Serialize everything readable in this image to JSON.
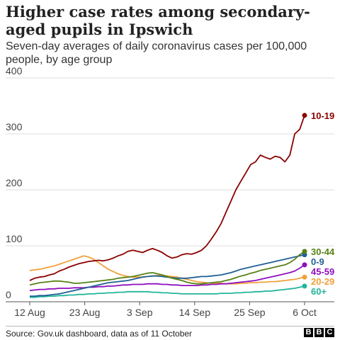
{
  "title": "Higher case rates among secondary-aged pupils in Ipswich",
  "subtitle": "Seven-day averages of daily coronavirus cases per 100,000 people, by age group",
  "source": "Source: Gov.uk dashboard, data as of 11 October",
  "logo": [
    "B",
    "B",
    "C"
  ],
  "chart_data": {
    "type": "line",
    "title": "Higher case rates among secondary-aged pupils in Ipswich",
    "subtitle": "Seven-day averages of daily coronavirus cases per 100,000 people, by age group",
    "ylim": [
      0,
      400
    ],
    "yticks": [
      0,
      100,
      200,
      300,
      400
    ],
    "xlim": [
      "12 Aug",
      "6 Oct"
    ],
    "xticks": [
      "12 Aug",
      "23 Aug",
      "3 Sep",
      "14 Sep",
      "25 Sep",
      "6 Oct"
    ],
    "grid": true,
    "series": [
      {
        "name": "10-19",
        "color": "#8b0000",
        "values": [
          38,
          42,
          44,
          45,
          48,
          50,
          55,
          58,
          62,
          65,
          68,
          70,
          72,
          73,
          74,
          73,
          75,
          78,
          82,
          85,
          90,
          92,
          90,
          88,
          92,
          95,
          92,
          88,
          82,
          78,
          80,
          84,
          86,
          85,
          88,
          92,
          100,
          112,
          125,
          140,
          160,
          180,
          200,
          215,
          230,
          245,
          250,
          262,
          258,
          255,
          260,
          258,
          250,
          262,
          300,
          308,
          333
        ]
      },
      {
        "name": "30-44",
        "color": "#588216",
        "values": [
          30,
          32,
          34,
          35,
          36,
          37,
          37,
          36,
          35,
          33,
          33,
          34,
          35,
          36,
          37,
          38,
          39,
          40,
          42,
          43,
          44,
          45,
          47,
          49,
          51,
          52,
          50,
          48,
          45,
          42,
          40,
          38,
          35,
          33,
          32,
          32,
          33,
          34,
          35,
          36,
          38,
          40,
          43,
          46,
          48,
          51,
          53,
          56,
          58,
          60,
          62,
          64,
          66,
          70,
          76,
          84,
          90
        ]
      },
      {
        "name": "0-9",
        "color": "#206095",
        "values": [
          10,
          10,
          11,
          11,
          12,
          13,
          14,
          16,
          18,
          20,
          22,
          24,
          26,
          28,
          30,
          32,
          34,
          35,
          36,
          37,
          38,
          40,
          42,
          44,
          45,
          46,
          46,
          45,
          44,
          43,
          42,
          42,
          42,
          43,
          44,
          45,
          45,
          46,
          47,
          48,
          50,
          52,
          55,
          58,
          60,
          62,
          64,
          66,
          68,
          70,
          72,
          74,
          76,
          78,
          80,
          82,
          84
        ]
      },
      {
        "name": "45-59",
        "color": "#8f0ebf",
        "values": [
          20,
          21,
          22,
          22,
          23,
          23,
          24,
          24,
          24,
          25,
          25,
          25,
          26,
          26,
          27,
          27,
          28,
          28,
          29,
          30,
          30,
          31,
          31,
          31,
          32,
          32,
          32,
          31,
          31,
          30,
          30,
          29,
          29,
          29,
          29,
          30,
          30,
          31,
          31,
          32,
          32,
          33,
          34,
          35,
          36,
          37,
          38,
          40,
          42,
          44,
          46,
          48,
          50,
          52,
          55,
          60,
          66
        ]
      },
      {
        "name": "20-29",
        "color": "#f0a13a",
        "values": [
          56,
          57,
          58,
          60,
          62,
          64,
          67,
          70,
          73,
          76,
          79,
          82,
          80,
          76,
          70,
          64,
          58,
          54,
          50,
          47,
          45,
          44,
          44,
          44,
          45,
          46,
          47,
          47,
          46,
          45,
          44,
          42,
          40,
          38,
          36,
          35,
          34,
          33,
          33,
          33,
          32,
          32,
          32,
          33,
          33,
          34,
          34,
          35,
          35,
          36,
          36,
          37,
          38,
          39,
          40,
          42,
          44
        ]
      },
      {
        "name": "60+",
        "color": "#22b59a",
        "values": [
          8,
          8,
          9,
          9,
          10,
          10,
          11,
          11,
          12,
          12,
          13,
          13,
          14,
          14,
          15,
          15,
          16,
          16,
          17,
          17,
          18,
          18,
          18,
          18,
          18,
          17,
          17,
          16,
          16,
          15,
          15,
          14,
          14,
          14,
          14,
          14,
          14,
          14,
          14,
          15,
          15,
          15,
          16,
          16,
          17,
          17,
          18,
          18,
          19,
          19,
          20,
          21,
          22,
          23,
          24,
          26,
          28
        ]
      }
    ]
  }
}
